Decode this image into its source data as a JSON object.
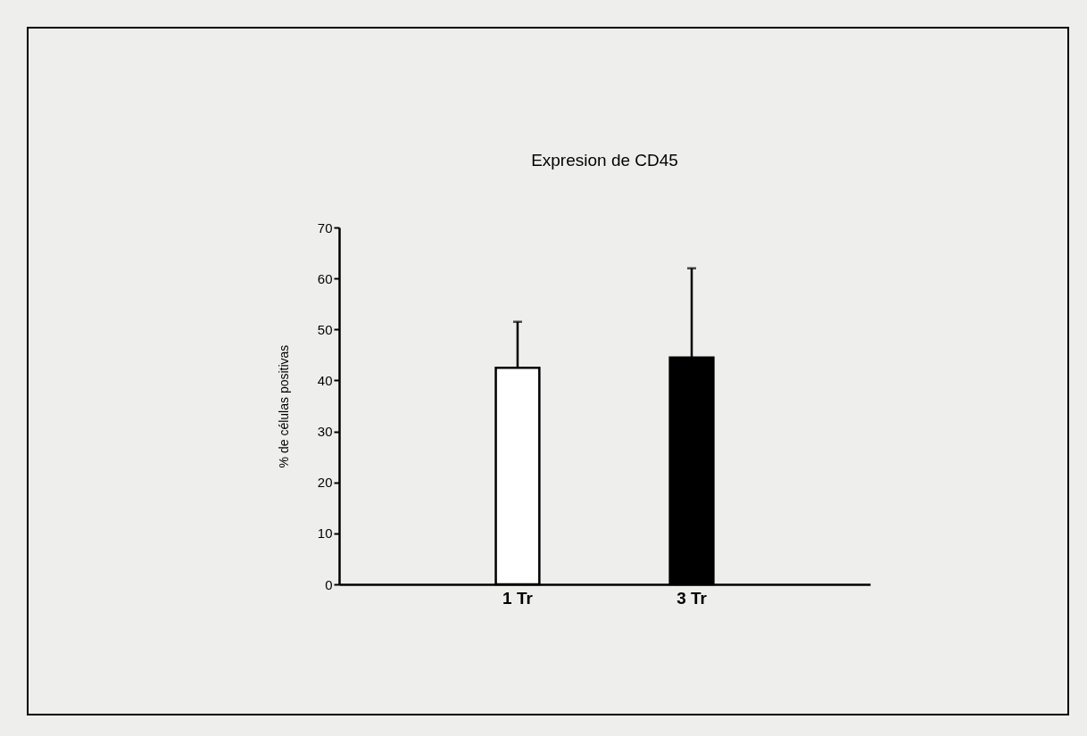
{
  "chart_data": {
    "type": "bar",
    "title": "Expresion de CD45",
    "ylabel": "% de células positivas",
    "categories": [
      "1 Tr",
      "3 Tr"
    ],
    "values": [
      42.5,
      44.5
    ],
    "colors": [
      "#ffffff",
      "#000000"
    ],
    "errors": [
      [
        42.5,
        51.5
      ],
      [
        44.5,
        62
      ]
    ],
    "ylim": [
      0,
      70
    ],
    "yticks": [
      0,
      10,
      20,
      30,
      40,
      50,
      60,
      70
    ],
    "grid": false
  }
}
